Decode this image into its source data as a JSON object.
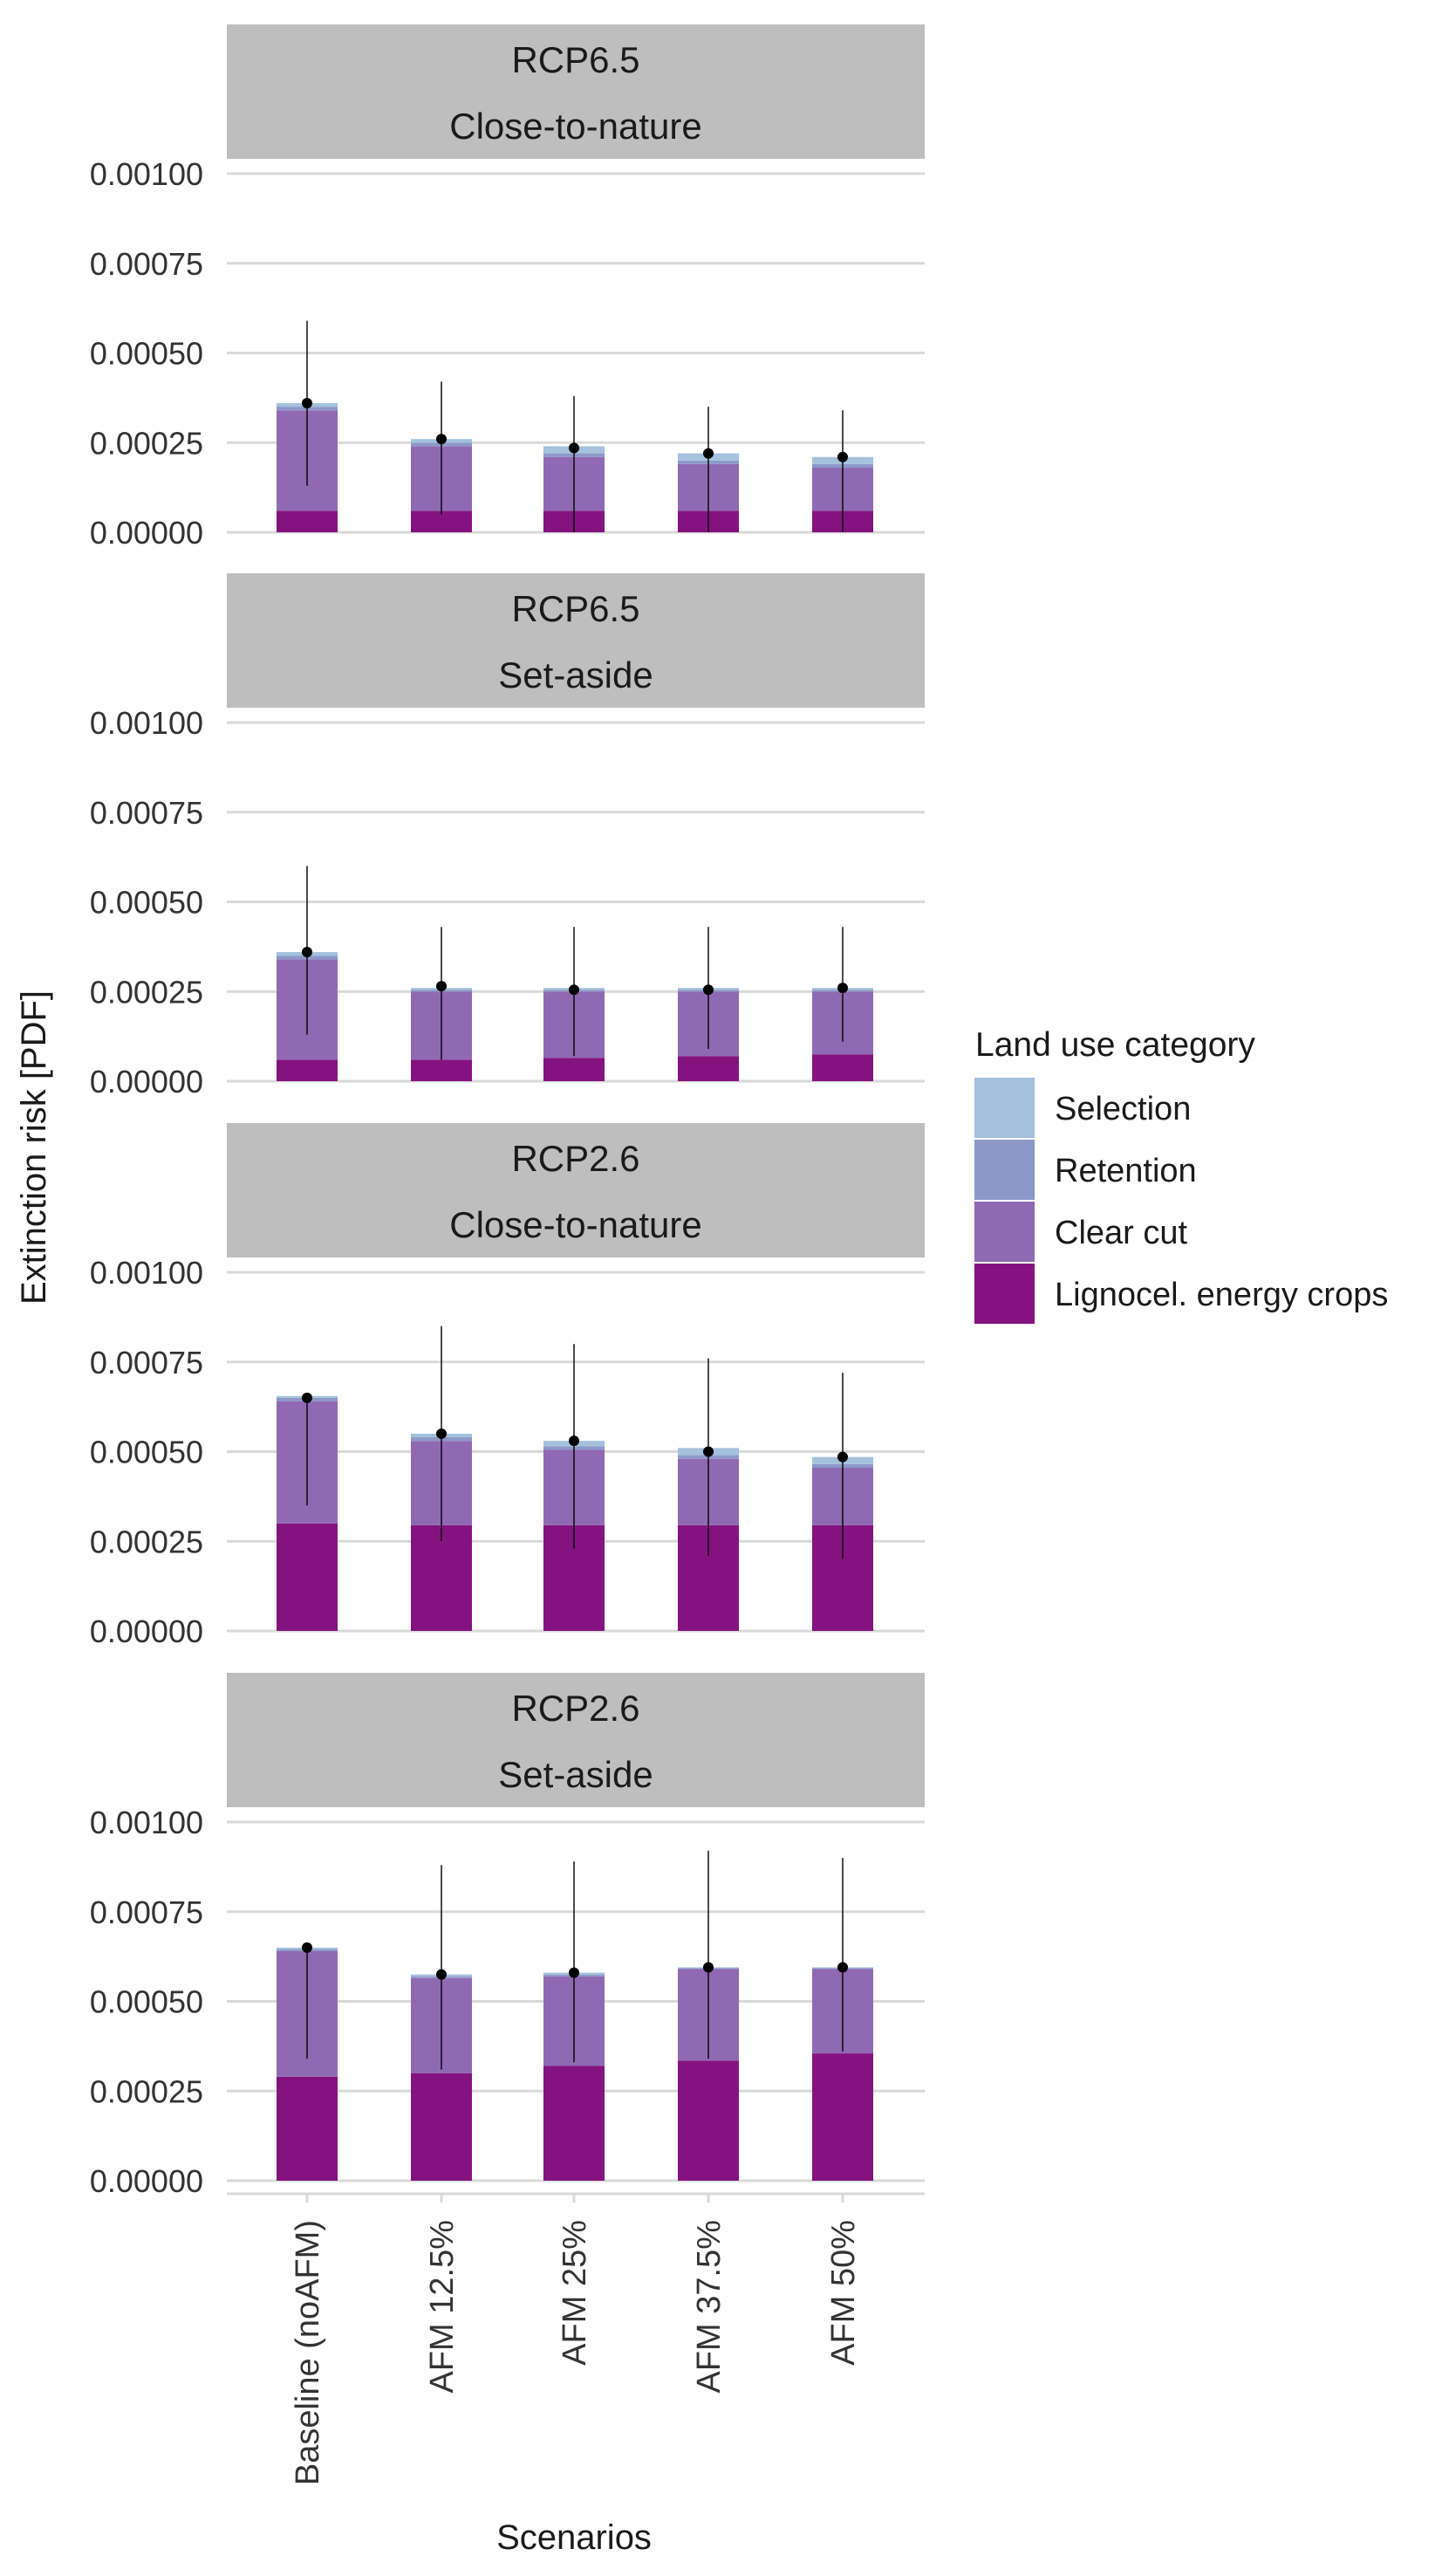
{
  "chart_data": {
    "type": "bar",
    "stacked": true,
    "xlabel": "Scenarios",
    "ylabel": "Extinction risk [PDF]",
    "ylim": [
      0,
      0.001
    ],
    "yticks": [
      "0.00000",
      "0.00025",
      "0.00050",
      "0.00075",
      "0.00100"
    ],
    "categories": [
      "Baseline (noAFM)",
      "AFM 12.5%",
      "AFM 25%",
      "AFM 37.5%",
      "AFM 50%"
    ],
    "legend": {
      "title": "Land use category",
      "position": "right",
      "items": [
        {
          "label": "Selection",
          "color": "#a4c1dd"
        },
        {
          "label": "Retention",
          "color": "#8d98c9"
        },
        {
          "label": "Clear cut",
          "color": "#8f6ab2"
        },
        {
          "label": "Lignocel. energy crops",
          "color": "#84137f"
        }
      ]
    },
    "grid": true,
    "panels": [
      {
        "title_line1": "RCP6.5",
        "title_line2": "Close-to-nature",
        "series": [
          {
            "name": "Lignocel. energy crops",
            "values": [
              6e-05,
              6e-05,
              6e-05,
              6e-05,
              6e-05
            ]
          },
          {
            "name": "Clear cut",
            "values": [
              0.00028,
              0.00018,
              0.00015,
              0.00013,
              0.00012
            ]
          },
          {
            "name": "Retention",
            "values": [
              1e-05,
              1e-05,
              1e-05,
              1e-05,
              1e-05
            ]
          },
          {
            "name": "Selection",
            "values": [
              1e-05,
              1e-05,
              2e-05,
              2e-05,
              2e-05
            ]
          }
        ],
        "point": [
          0.00036,
          0.00026,
          0.000235,
          0.00022,
          0.00021
        ],
        "err_low": [
          0.00013,
          5e-05,
          0.0,
          0.0,
          0.0
        ],
        "err_high": [
          0.00059,
          0.00042,
          0.00038,
          0.00035,
          0.00034
        ]
      },
      {
        "title_line1": "RCP6.5",
        "title_line2": "Set-aside",
        "series": [
          {
            "name": "Lignocel. energy crops",
            "values": [
              6e-05,
              6e-05,
              6.5e-05,
              7e-05,
              7.5e-05
            ]
          },
          {
            "name": "Clear cut",
            "values": [
              0.00028,
              0.00019,
              0.000185,
              0.00018,
              0.000175
            ]
          },
          {
            "name": "Retention",
            "values": [
              1e-05,
              5e-06,
              5e-06,
              5e-06,
              5e-06
            ]
          },
          {
            "name": "Selection",
            "values": [
              1e-05,
              5e-06,
              5e-06,
              5e-06,
              5e-06
            ]
          }
        ],
        "point": [
          0.00036,
          0.000265,
          0.000255,
          0.000255,
          0.00026
        ],
        "err_low": [
          0.00013,
          6e-05,
          7e-05,
          9e-05,
          0.00011
        ],
        "err_high": [
          0.0006,
          0.00043,
          0.00043,
          0.00043,
          0.00043
        ]
      },
      {
        "title_line1": "RCP2.6",
        "title_line2": "Close-to-nature",
        "series": [
          {
            "name": "Lignocel. energy crops",
            "values": [
              0.0003,
              0.000295,
              0.000295,
              0.000295,
              0.000295
            ]
          },
          {
            "name": "Clear cut",
            "values": [
              0.00034,
              0.000235,
              0.00021,
              0.000185,
              0.00016
            ]
          },
          {
            "name": "Retention",
            "values": [
              1e-05,
              1e-05,
              1e-05,
              1e-05,
              1e-05
            ]
          },
          {
            "name": "Selection",
            "values": [
              5e-06,
              1e-05,
              1.5e-05,
              2e-05,
              2e-05
            ]
          }
        ],
        "point": [
          0.00065,
          0.00055,
          0.00053,
          0.0005,
          0.000485
        ],
        "err_low": [
          0.00035,
          0.00025,
          0.00023,
          0.00021,
          0.0002
        ],
        "err_high": [
          0.00065,
          0.00085,
          0.0008,
          0.00076,
          0.00072
        ]
      },
      {
        "title_line1": "RCP2.6",
        "title_line2": "Set-aside",
        "series": [
          {
            "name": "Lignocel. energy crops",
            "values": [
              0.00029,
              0.0003,
              0.00032,
              0.000335,
              0.000355
            ]
          },
          {
            "name": "Clear cut",
            "values": [
              0.00035,
              0.000265,
              0.00025,
              0.000255,
              0.000235
            ]
          },
          {
            "name": "Retention",
            "values": [
              5e-06,
              5e-06,
              5e-06,
              3e-06,
              3e-06
            ]
          },
          {
            "name": "Selection",
            "values": [
              5e-06,
              5e-06,
              5e-06,
              2e-06,
              2e-06
            ]
          }
        ],
        "point": [
          0.00065,
          0.000575,
          0.00058,
          0.000595,
          0.000595
        ],
        "err_low": [
          0.00034,
          0.00031,
          0.00033,
          0.00034,
          0.00036
        ],
        "err_high": [
          0.00065,
          0.00088,
          0.00089,
          0.00092,
          0.0009
        ]
      }
    ]
  }
}
